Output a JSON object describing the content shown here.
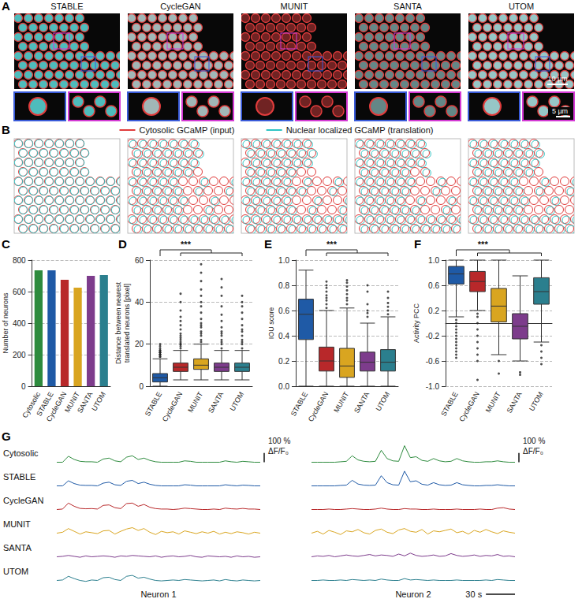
{
  "panel_a": {
    "panel": "A",
    "titles": [
      "STABLE",
      "CycleGAN",
      "MUNIT",
      "SANTA",
      "UTOM"
    ],
    "scale_bars": [
      "10 µm",
      "5 µm"
    ]
  },
  "panel_b": {
    "panel": "B",
    "legend": [
      {
        "name": "Cytosolic GCaMP (input)",
        "color": "#e03c3c"
      },
      {
        "name": "Nuclear localized GCaMP (translation)",
        "color": "#2ec4c4"
      }
    ]
  },
  "chart_data": [
    {
      "panel": "C",
      "type": "bar",
      "categories": [
        "Cytosolic",
        "STABLE",
        "CycleGAN",
        "MUNIT",
        "SANTA",
        "UTOM"
      ],
      "values": [
        735,
        735,
        675,
        625,
        700,
        705
      ],
      "colors": [
        "#2e8b3e",
        "#1f5aa6",
        "#b8282a",
        "#d9a520",
        "#7d3c8c",
        "#2b7f8e"
      ],
      "y_label": "Number of neurons",
      "ylim": [
        0,
        800
      ],
      "yticks": [
        0,
        200,
        400,
        600,
        800
      ],
      "grid": true
    },
    {
      "panel": "D",
      "type": "boxplot",
      "categories": [
        "STABLE",
        "CycleGAN",
        "MUNIT",
        "SANTA",
        "UTOM"
      ],
      "stats": [
        [
          0,
          2,
          4,
          6,
          13
        ],
        [
          3,
          7,
          9,
          11,
          17
        ],
        [
          3,
          8,
          10,
          13,
          20
        ],
        [
          3,
          7,
          9,
          11,
          17
        ],
        [
          3,
          7,
          9,
          11,
          17
        ]
      ],
      "outliers": [
        [
          14,
          15,
          15,
          16,
          16,
          17,
          17,
          18,
          19,
          20,
          14,
          15,
          16
        ],
        [
          18,
          19,
          20,
          21,
          22,
          23,
          25,
          27,
          29,
          31,
          33,
          36,
          40,
          44,
          20,
          24
        ],
        [
          21,
          22,
          24,
          26,
          28,
          30,
          32,
          35,
          38,
          40,
          43,
          46,
          50,
          54,
          58,
          25,
          29
        ],
        [
          18,
          20,
          22,
          24,
          26,
          28,
          31,
          34,
          38,
          43,
          47,
          51,
          21,
          25
        ],
        [
          18,
          20,
          22,
          24,
          26,
          29,
          32,
          35,
          38,
          40,
          43,
          21,
          27
        ]
      ],
      "colors": [
        "#1f5aa6",
        "#b8282a",
        "#d9a520",
        "#7d3c8c",
        "#2b7f8e"
      ],
      "y_label": "Distance between nearest translated neurons [pixel]",
      "ylim": [
        0,
        60
      ],
      "yticks": [
        0,
        20,
        40,
        60
      ],
      "grid": true,
      "significance": "***"
    },
    {
      "panel": "E",
      "type": "boxplot",
      "categories": [
        "STABLE",
        "CycleGAN",
        "MUNIT",
        "SANTA",
        "UTOM"
      ],
      "stats": [
        [
          0,
          0.37,
          0.57,
          0.69,
          0.92
        ],
        [
          0,
          0.12,
          0.2,
          0.31,
          0.6
        ],
        [
          0,
          0.07,
          0.16,
          0.3,
          0.62
        ],
        [
          0,
          0.12,
          0.19,
          0.27,
          0.5
        ],
        [
          0,
          0.12,
          0.19,
          0.29,
          0.55
        ]
      ],
      "outliers": [
        [],
        [
          0.62,
          0.65,
          0.68,
          0.7,
          0.72,
          0.75,
          0.78,
          0.8,
          0.83
        ],
        [
          0.65,
          0.68,
          0.7,
          0.73,
          0.76,
          0.79,
          0.82,
          0.84
        ],
        [
          0.55,
          0.58,
          0.6,
          0.65,
          0.75,
          0.8
        ],
        [
          0.57,
          0.6,
          0.63,
          0.66,
          0.7,
          0.75
        ]
      ],
      "colors": [
        "#1f5aa6",
        "#b8282a",
        "#d9a520",
        "#7d3c8c",
        "#2b7f8e"
      ],
      "y_label": "IOU score",
      "ylim": [
        0,
        1
      ],
      "yticks": [
        {
          "value": 0,
          "label": "0.0"
        },
        0.2,
        0.4,
        0.6,
        0.8,
        {
          "value": 1,
          "label": "1.0"
        }
      ],
      "grid": true,
      "significance": "***"
    },
    {
      "panel": "F",
      "type": "boxplot",
      "categories": [
        "STABLE",
        "CycleGAN",
        "MUNIT",
        "SANTA",
        "UTOM"
      ],
      "stats": [
        [
          0.1,
          0.62,
          0.78,
          0.9,
          1.0
        ],
        [
          0.2,
          0.5,
          0.66,
          0.82,
          1.0
        ],
        [
          -0.5,
          0.02,
          0.27,
          0.55,
          1.0
        ],
        [
          -0.6,
          -0.25,
          -0.05,
          0.15,
          0.75
        ],
        [
          -0.3,
          0.3,
          0.5,
          0.72,
          1.0
        ]
      ],
      "outliers": [
        [
          0.05,
          0,
          -0.05,
          -0.1,
          -0.15,
          -0.2,
          -0.25,
          -0.3,
          -0.35,
          -0.4,
          -0.45,
          -0.5,
          -0.55
        ],
        [
          0.15,
          0.1,
          0,
          -0.1,
          -0.2,
          -0.3,
          -0.4,
          -0.5,
          -0.6,
          -0.9
        ],
        [
          -0.6,
          -0.8
        ],
        [
          -0.78,
          -0.82
        ],
        [
          -0.35,
          -0.45,
          -0.55,
          -0.65
        ]
      ],
      "colors": [
        "#1f5aa6",
        "#b8282a",
        "#d9a520",
        "#7d3c8c",
        "#2b7f8e"
      ],
      "y_label": "Activity PCC",
      "ylim": [
        -1,
        1
      ],
      "yticks": [
        {
          "value": -1,
          "label": "-1.0"
        },
        -0.6,
        -0.2,
        0.2,
        0.6,
        {
          "value": 1,
          "label": "1.0"
        }
      ],
      "grid": true,
      "significance": "***"
    },
    {
      "panel": "G",
      "type": "line",
      "tick_labels": false,
      "neurons": [
        "Neuron 1",
        "Neuron 2"
      ],
      "x": [
        0,
        6,
        12,
        18,
        24,
        30,
        36,
        42,
        48,
        54,
        60,
        66,
        72,
        78,
        84,
        90,
        96,
        102,
        108,
        114,
        120,
        126,
        132,
        138,
        144,
        150,
        156,
        162,
        168,
        174,
        180,
        186,
        192,
        198,
        204,
        210
      ],
      "xlim": [
        0,
        210
      ],
      "ylim": [
        -30,
        210
      ],
      "y_scale_bar": {
        "value": 100,
        "label": "100 %",
        "unit": "ΔF/F₀"
      },
      "x_scale_bar": {
        "value": 30,
        "label": "30 s"
      },
      "series": [
        {
          "name": "Cytosolic",
          "color": "#2e8b3e",
          "values": [
            [
              0,
              0,
              65,
              30,
              10,
              5,
              5,
              0,
              35,
              45,
              15,
              5,
              55,
              70,
              30,
              45,
              20,
              5,
              0,
              0,
              0,
              0,
              15,
              10,
              0,
              0,
              0,
              0,
              0,
              15,
              5,
              0,
              10,
              5,
              0,
              0
            ],
            [
              0,
              0,
              0,
              0,
              0,
              5,
              10,
              70,
              25,
              10,
              5,
              10,
              130,
              40,
              15,
              10,
              180,
              50,
              60,
              20,
              10,
              40,
              15,
              5,
              10,
              40,
              15,
              5,
              0,
              0,
              5,
              5,
              15,
              5,
              0,
              0
            ]
          ]
        },
        {
          "name": "STABLE",
          "color": "#1f5aa6",
          "values": [
            [
              0,
              0,
              55,
              25,
              8,
              5,
              5,
              0,
              30,
              40,
              12,
              5,
              50,
              60,
              25,
              40,
              18,
              5,
              0,
              0,
              0,
              0,
              12,
              8,
              0,
              0,
              0,
              0,
              0,
              12,
              5,
              0,
              8,
              5,
              0,
              0
            ],
            [
              0,
              0,
              0,
              0,
              0,
              5,
              8,
              60,
              20,
              8,
              5,
              8,
              110,
              35,
              12,
              8,
              160,
              45,
              55,
              18,
              8,
              35,
              12,
              5,
              8,
              35,
              12,
              5,
              0,
              0,
              5,
              5,
              12,
              5,
              0,
              0
            ]
          ]
        },
        {
          "name": "CycleGAN",
          "color": "#b8282a",
          "values": [
            [
              0,
              5,
              70,
              35,
              12,
              8,
              10,
              5,
              45,
              50,
              20,
              10,
              65,
              70,
              35,
              55,
              25,
              10,
              5,
              5,
              0,
              5,
              15,
              10,
              5,
              0,
              0,
              5,
              0,
              15,
              8,
              5,
              12,
              5,
              5,
              0
            ],
            [
              0,
              0,
              0,
              5,
              0,
              0,
              5,
              10,
              5,
              0,
              0,
              5,
              15,
              5,
              0,
              0,
              10,
              5,
              5,
              0,
              0,
              5,
              0,
              0,
              0,
              5,
              0,
              0,
              0,
              5,
              0,
              0,
              15,
              20,
              5,
              0
            ]
          ]
        },
        {
          "name": "MUNIT",
          "color": "#d9a520",
          "values": [
            [
              0,
              10,
              50,
              20,
              -10,
              15,
              5,
              -5,
              25,
              30,
              -10,
              20,
              45,
              60,
              30,
              50,
              10,
              -15,
              20,
              5,
              15,
              -10,
              25,
              10,
              -5,
              15,
              0,
              20,
              -10,
              10,
              -5,
              15,
              5,
              -10,
              10,
              0
            ],
            [
              0,
              20,
              -10,
              30,
              10,
              -15,
              25,
              15,
              40,
              5,
              -10,
              30,
              45,
              10,
              -5,
              35,
              50,
              20,
              10,
              40,
              -10,
              25,
              15,
              30,
              45,
              5,
              20,
              -10,
              30,
              10,
              40,
              15,
              -5,
              25,
              10,
              0
            ]
          ]
        },
        {
          "name": "SANTA",
          "color": "#7d3c8c",
          "values": [
            [
              0,
              5,
              15,
              5,
              -5,
              10,
              0,
              5,
              10,
              5,
              -5,
              10,
              5,
              15,
              10,
              5,
              0,
              10,
              -5,
              5,
              10,
              0,
              5,
              15,
              0,
              -5,
              10,
              5,
              0,
              5,
              -5,
              10,
              0,
              5,
              -5,
              0
            ],
            [
              0,
              10,
              5,
              15,
              0,
              10,
              20,
              10,
              5,
              15,
              25,
              10,
              20,
              15,
              5,
              30,
              10,
              40,
              15,
              5,
              10,
              20,
              5,
              10,
              35,
              15,
              5,
              10,
              20,
              5,
              15,
              10,
              25,
              5,
              10,
              0
            ]
          ]
        },
        {
          "name": "UTOM",
          "color": "#2b7f8e",
          "values": [
            [
              0,
              5,
              45,
              20,
              0,
              -10,
              5,
              0,
              30,
              35,
              10,
              0,
              45,
              55,
              25,
              35,
              15,
              0,
              -5,
              0,
              5,
              0,
              10,
              5,
              0,
              -5,
              0,
              5,
              -5,
              10,
              0,
              -5,
              5,
              0,
              -5,
              0
            ],
            [
              0,
              0,
              5,
              0,
              0,
              5,
              0,
              10,
              5,
              0,
              5,
              0,
              15,
              5,
              0,
              0,
              20,
              5,
              10,
              5,
              0,
              5,
              0,
              0,
              0,
              5,
              0,
              0,
              0,
              0,
              5,
              0,
              10,
              5,
              0,
              0
            ]
          ]
        }
      ]
    }
  ]
}
